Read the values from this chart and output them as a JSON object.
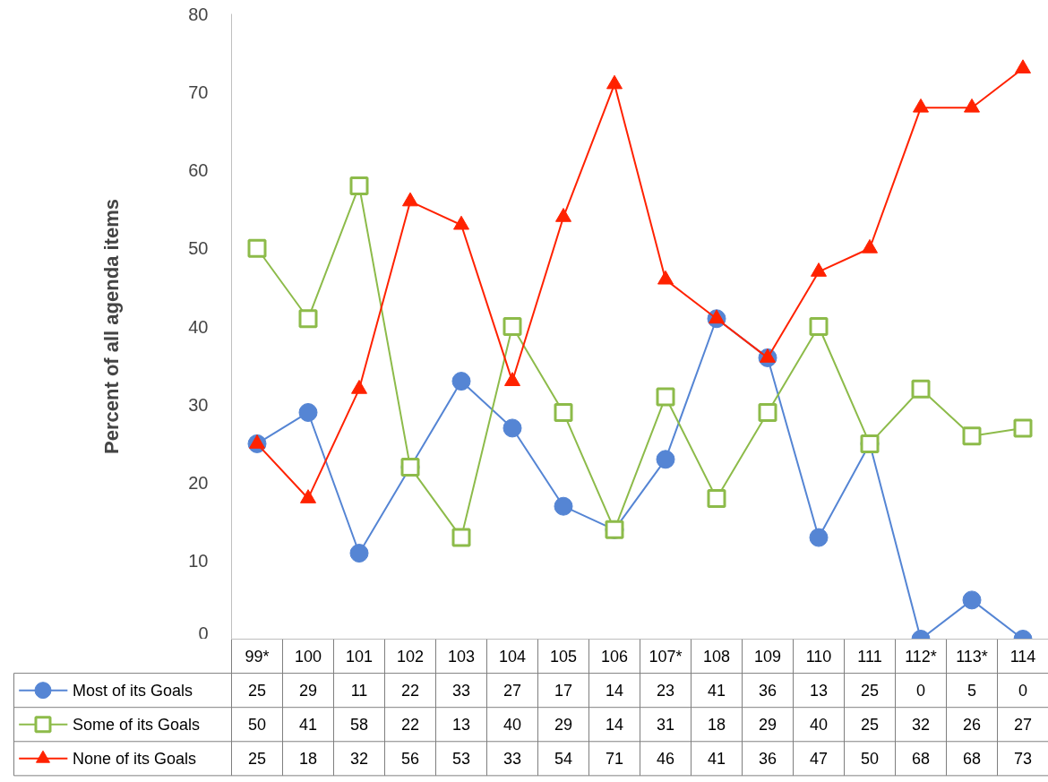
{
  "chart_data": {
    "type": "line",
    "ylabel": "Percent of all agenda items",
    "categories": [
      "99*",
      "100",
      "101",
      "102",
      "103",
      "104",
      "105",
      "106",
      "107*",
      "108",
      "109",
      "110",
      "111",
      "112*",
      "113*",
      "114"
    ],
    "series": [
      {
        "name": "Most of its Goals",
        "color": "#5585d4",
        "marker": "circle",
        "values": [
          25,
          29,
          11,
          22,
          33,
          27,
          17,
          14,
          23,
          41,
          36,
          13,
          25,
          0,
          5,
          0
        ]
      },
      {
        "name": "Some of its Goals",
        "color": "#8dbb4a",
        "marker": "square",
        "values": [
          50,
          41,
          58,
          22,
          13,
          40,
          29,
          14,
          31,
          18,
          29,
          40,
          25,
          32,
          26,
          27
        ]
      },
      {
        "name": "None of its Goals",
        "color": "#ff2200",
        "marker": "triangle",
        "values": [
          25,
          18,
          32,
          56,
          53,
          33,
          54,
          71,
          46,
          41,
          36,
          47,
          50,
          68,
          68,
          73
        ]
      }
    ],
    "ylim": [
      0,
      80
    ],
    "yticks": [
      0,
      10,
      20,
      30,
      40,
      50,
      60,
      70,
      80
    ],
    "grid": false,
    "legend": "bottom",
    "data_labels": true
  }
}
